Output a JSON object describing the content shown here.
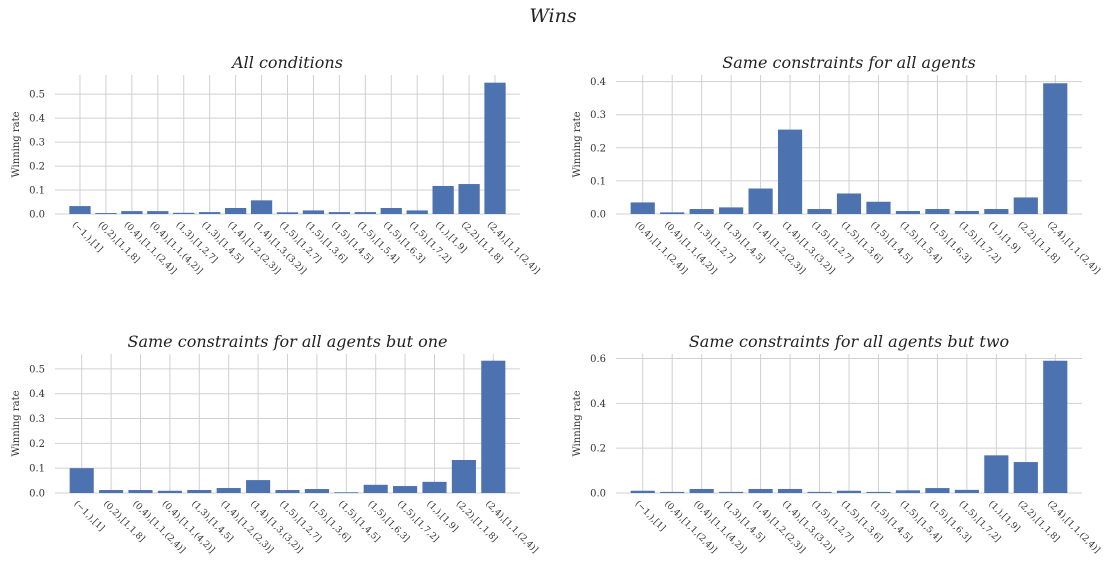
{
  "figure_title": "Wins",
  "chart_data": [
    {
      "type": "bar",
      "title": "All conditions",
      "xlabel": "",
      "ylabel": "Winning rate",
      "ylim": [
        0,
        0.58
      ],
      "yticks": [
        0.0,
        0.1,
        0.2,
        0.3,
        0.4,
        0.5
      ],
      "ytick_labels": [
        "0.0",
        "0.1",
        "0.2",
        "0.3",
        "0.4",
        "0.5"
      ],
      "grid": true,
      "categories": [
        "(−1,),[1]",
        "(0,2),[1,1,8]",
        "(0,4),[1,1,(2,4)]",
        "(0,4),[1,1,(4,2)]",
        "(1,3),[1,2,7]",
        "(1,3),[1,4,5]",
        "(1,4),[1,2,(2,3)]",
        "(1,4),[1,3,(3,2)]",
        "(1,5),[1,2,7]",
        "(1,5),[1,3,6]",
        "(1,5),[1,4,5]",
        "(1,5),[1,5,4]",
        "(1,5),[1,6,3]",
        "(1,5),[1,7,2]",
        "(1,),[1,9]",
        "(2,2),[1,1,8]",
        "(2,4),[1,1,(2,4)]"
      ],
      "values": [
        0.033,
        0.004,
        0.012,
        0.012,
        0.005,
        0.008,
        0.025,
        0.057,
        0.007,
        0.015,
        0.008,
        0.008,
        0.025,
        0.015,
        0.117,
        0.125,
        0.548
      ]
    },
    {
      "type": "bar",
      "title": "Same constraints for all agents",
      "xlabel": "",
      "ylabel": "Winning rate",
      "ylim": [
        0,
        0.42
      ],
      "yticks": [
        0.0,
        0.1,
        0.2,
        0.3,
        0.4
      ],
      "ytick_labels": [
        "0.0",
        "0.1",
        "0.2",
        "0.3",
        "0.4"
      ],
      "grid": true,
      "categories": [
        "(0,4),[1,1,(2,4)]",
        "(0,4),[1,1,(4,2)]",
        "(1,3),[1,2,7]",
        "(1,3),[1,4,5]",
        "(1,4),[1,2,(2,3)]",
        "(1,4),[1,3,(3,2)]",
        "(1,5),[1,2,7]",
        "(1,5),[1,3,6]",
        "(1,5),[1,4,5]",
        "(1,5),[1,5,4]",
        "(1,5),[1,6,3]",
        "(1,5),[1,7,2]",
        "(1,),[1,9]",
        "(2,2),[1,1,8]",
        "(2,4),[1,1,(2,4)]"
      ],
      "values": [
        0.035,
        0.005,
        0.015,
        0.02,
        0.077,
        0.255,
        0.015,
        0.062,
        0.037,
        0.009,
        0.015,
        0.009,
        0.015,
        0.05,
        0.395
      ]
    },
    {
      "type": "bar",
      "title": "Same constraints for all agents but one",
      "xlabel": "",
      "ylabel": "Winning rate",
      "ylim": [
        0,
        0.56
      ],
      "yticks": [
        0.0,
        0.1,
        0.2,
        0.3,
        0.4,
        0.5
      ],
      "ytick_labels": [
        "0.0",
        "0.1",
        "0.2",
        "0.3",
        "0.4",
        "0.5"
      ],
      "grid": true,
      "categories": [
        "(−1,),[1]",
        "(0,2),[1,1,8]",
        "(0,4),[1,1,(2,4)]",
        "(0,4),[1,1,(4,2)]",
        "(1,3),[1,4,5]",
        "(1,4),[1,2,(2,3)]",
        "(1,4),[1,3,(3,2)]",
        "(1,5),[1,2,7]",
        "(1,5),[1,3,6]",
        "(1,5),[1,4,5]",
        "(1,5),[1,6,3]",
        "(1,5),[1,7,2]",
        "(1,),[1,9]",
        "(2,2),[1,1,8]",
        "(2,4),[1,1,(2,4)]"
      ],
      "values": [
        0.1,
        0.012,
        0.012,
        0.009,
        0.012,
        0.02,
        0.052,
        0.012,
        0.016,
        0.003,
        0.033,
        0.028,
        0.045,
        0.133,
        0.533
      ]
    },
    {
      "type": "bar",
      "title": "Same constraints for all agents but two",
      "xlabel": "",
      "ylabel": "Winning rate",
      "ylim": [
        0,
        0.62
      ],
      "yticks": [
        0.0,
        0.2,
        0.4,
        0.6
      ],
      "ytick_labels": [
        "0.0",
        "0.2",
        "0.4",
        "0.6"
      ],
      "grid": true,
      "categories": [
        "(−1,),[1]",
        "(0,4),[1,1,(2,4)]",
        "(0,4),[1,1,(4,2)]",
        "(1,3),[1,4,5]",
        "(1,4),[1,2,(2,3)]",
        "(1,4),[1,3,(3,2)]",
        "(1,5),[1,2,7]",
        "(1,5),[1,3,6]",
        "(1,5),[1,4,5]",
        "(1,5),[1,5,4]",
        "(1,5),[1,6,3]",
        "(1,5),[1,7,2]",
        "(1,),[1,9]",
        "(2,2),[1,1,8]",
        "(2,4),[1,1,(2,4)]"
      ],
      "values": [
        0.01,
        0.005,
        0.018,
        0.005,
        0.018,
        0.018,
        0.005,
        0.01,
        0.005,
        0.012,
        0.022,
        0.014,
        0.168,
        0.138,
        0.59
      ]
    }
  ]
}
